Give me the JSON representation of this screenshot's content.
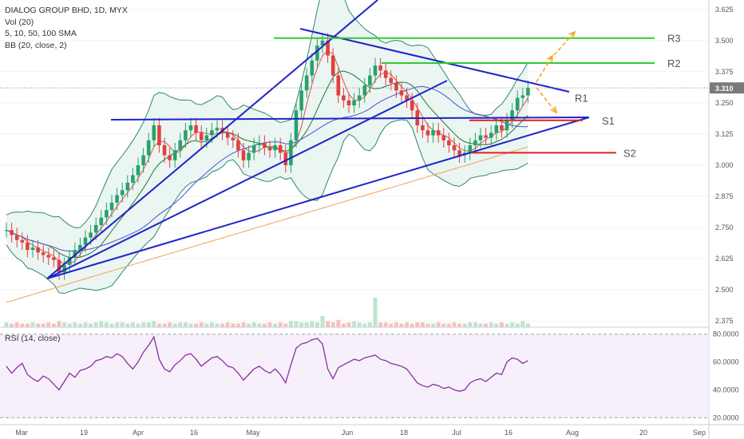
{
  "header": {
    "symbol_line": "DIALOG GROUP BHD, 1D, MYX",
    "vol_line": "Vol (20)",
    "sma_line": "5, 10, 50, 100 SMA",
    "bb_line": "BB (20, close, 2)",
    "rsi_line": "RSI (14, close)"
  },
  "colors": {
    "trendline": "#1f23c8",
    "resistance": "#2ecc2e",
    "support": "#e02020",
    "projection": "#f5a623",
    "bb_band": "#2a8a6a",
    "bb_fill": "#e6f3ef",
    "sma_red": "#e05050",
    "sma_green": "#1a7a30",
    "sma_blue": "#5050d0",
    "sma_orange": "#f5a050",
    "up_candle": "#26a26a",
    "down_candle": "#e04040",
    "rsi_line": "#8a2ea0",
    "price_tag": "#7a7a7a"
  },
  "chart_data": [
    {
      "type": "candlestick",
      "title": "DIALOG GROUP BHD, 1D, MYX",
      "y_axis": {
        "ticks": [
          "3.625",
          "3.500",
          "3.375",
          "3.250",
          "3.125",
          "3.000",
          "2.875",
          "2.750",
          "2.625",
          "2.500",
          "2.375"
        ],
        "range": [
          2.35,
          3.65
        ]
      },
      "x_axis": {
        "ticks": [
          "Mar",
          "19",
          "Apr",
          "16",
          "May",
          "Jun",
          "18",
          "Jul",
          "16",
          "Aug",
          "20",
          "Sep"
        ]
      },
      "last_price": "3.310",
      "levels": [
        {
          "label": "R3",
          "value": 3.51
        },
        {
          "label": "R2",
          "value": 3.41
        },
        {
          "label": "R1",
          "value": 3.27
        },
        {
          "label": "S1",
          "value": 3.18
        },
        {
          "label": "S2",
          "value": 3.05
        }
      ],
      "closes": [
        2.74,
        2.72,
        2.7,
        2.69,
        2.66,
        2.67,
        2.65,
        2.64,
        2.63,
        2.62,
        2.57,
        2.6,
        2.63,
        2.66,
        2.68,
        2.71,
        2.73,
        2.76,
        2.79,
        2.82,
        2.85,
        2.88,
        2.9,
        2.93,
        2.96,
        3.0,
        3.04,
        3.1,
        3.16,
        3.08,
        3.04,
        3.02,
        3.06,
        3.1,
        3.14,
        3.16,
        3.13,
        3.1,
        3.12,
        3.14,
        3.15,
        3.13,
        3.11,
        3.1,
        3.06,
        3.02,
        3.05,
        3.08,
        3.09,
        3.07,
        3.06,
        3.08,
        3.05,
        3.0,
        3.1,
        3.22,
        3.3,
        3.36,
        3.42,
        3.48,
        3.5,
        3.44,
        3.36,
        3.28,
        3.26,
        3.24,
        3.26,
        3.28,
        3.32,
        3.36,
        3.4,
        3.38,
        3.35,
        3.33,
        3.3,
        3.28,
        3.26,
        3.22,
        3.16,
        3.14,
        3.12,
        3.14,
        3.12,
        3.1,
        3.08,
        3.06,
        3.04,
        3.05,
        3.08,
        3.1,
        3.12,
        3.11,
        3.13,
        3.16,
        3.14,
        3.18,
        3.22,
        3.27,
        3.28,
        3.31
      ],
      "volumes": [
        4,
        3,
        4,
        3,
        3,
        4,
        3,
        3,
        4,
        3,
        5,
        4,
        3,
        4,
        3,
        4,
        3,
        4,
        5,
        4,
        3,
        4,
        4,
        3,
        4,
        3,
        4,
        4,
        5,
        3,
        3,
        4,
        3,
        4,
        4,
        3,
        3,
        4,
        3,
        4,
        3,
        3,
        4,
        3,
        3,
        4,
        3,
        4,
        3,
        3,
        4,
        3,
        4,
        3,
        5,
        5,
        4,
        4,
        5,
        4,
        9,
        5,
        4,
        6,
        3,
        4,
        5,
        4,
        3,
        4,
        24,
        4,
        4,
        3,
        4,
        3,
        4,
        3,
        4,
        4,
        3,
        3,
        4,
        3,
        3,
        4,
        3,
        3,
        4,
        4,
        3,
        3,
        4,
        3,
        4,
        3,
        4,
        3,
        5,
        3
      ]
    },
    {
      "type": "line",
      "title": "RSI (14, close)",
      "y_axis": {
        "ticks": [
          "80.0000",
          "60.0000",
          "40.0000",
          "20.0000"
        ],
        "range": [
          15,
          85
        ]
      },
      "values": [
        57,
        52,
        56,
        59,
        51,
        48,
        46,
        50,
        48,
        44,
        40,
        46,
        52,
        49,
        54,
        55,
        57,
        61,
        62,
        64,
        63,
        66,
        64,
        59,
        55,
        60,
        67,
        72,
        78,
        62,
        55,
        53,
        58,
        61,
        65,
        66,
        62,
        57,
        60,
        63,
        64,
        61,
        57,
        56,
        52,
        47,
        51,
        55,
        57,
        54,
        52,
        55,
        51,
        45,
        58,
        70,
        73,
        74,
        76,
        77,
        73,
        55,
        48,
        56,
        58,
        60,
        62,
        61,
        63,
        64,
        65,
        62,
        61,
        59,
        58,
        57,
        55,
        50,
        45,
        43,
        42,
        44,
        43,
        41,
        42,
        40,
        39,
        40,
        45,
        47,
        48,
        46,
        49,
        52,
        51,
        60,
        63,
        62,
        59,
        61
      ]
    }
  ]
}
